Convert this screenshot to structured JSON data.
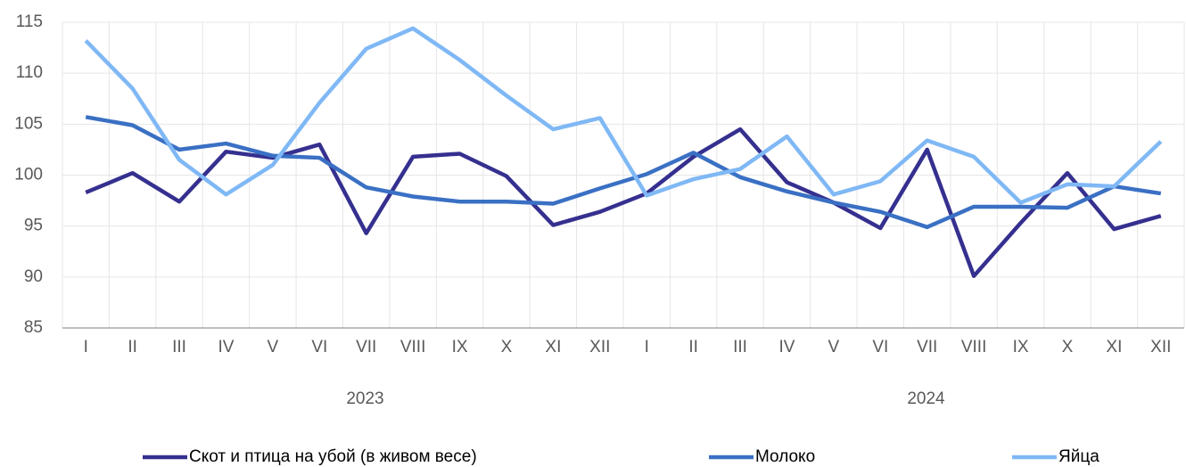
{
  "chart_data": {
    "type": "line",
    "categories": [
      "I",
      "II",
      "III",
      "IV",
      "V",
      "VI",
      "VII",
      "VIII",
      "IX",
      "X",
      "XI",
      "XII",
      "I",
      "II",
      "III",
      "IV",
      "V",
      "VI",
      "VII",
      "VIII",
      "IX",
      "X",
      "XI",
      "XII"
    ],
    "groups": [
      "2023",
      "2024"
    ],
    "series": [
      {
        "name": "Скот и птица на убой (в живом весе)",
        "color": "#35308f",
        "values": [
          98.3,
          100.2,
          97.4,
          102.3,
          101.7,
          103.0,
          94.3,
          101.8,
          102.1,
          99.9,
          95.1,
          96.4,
          98.2,
          101.8,
          104.5,
          99.3,
          97.3,
          94.8,
          102.5,
          90.1,
          95.3,
          100.2,
          94.7,
          96.0
        ]
      },
      {
        "name": "Молоко",
        "color": "#3a70c4",
        "values": [
          105.7,
          104.9,
          102.5,
          103.1,
          101.9,
          101.7,
          98.8,
          97.9,
          97.4,
          97.4,
          97.2,
          98.7,
          100.1,
          102.2,
          99.8,
          98.4,
          97.3,
          96.4,
          94.9,
          96.9,
          96.9,
          96.8,
          98.9,
          98.2
        ]
      },
      {
        "name": "Яйца",
        "color": "#7fb8f5",
        "values": [
          113.2,
          108.5,
          101.5,
          98.1,
          101.0,
          107.1,
          112.4,
          114.4,
          111.3,
          107.8,
          104.5,
          105.6,
          98.0,
          99.6,
          100.6,
          103.8,
          98.1,
          99.4,
          103.4,
          101.8,
          97.3,
          99.1,
          98.9,
          103.3
        ]
      }
    ],
    "ylim": [
      85,
      115
    ],
    "yticks": [
      85,
      90,
      95,
      100,
      105,
      110,
      115
    ],
    "grid": true,
    "legend": "bottom"
  }
}
